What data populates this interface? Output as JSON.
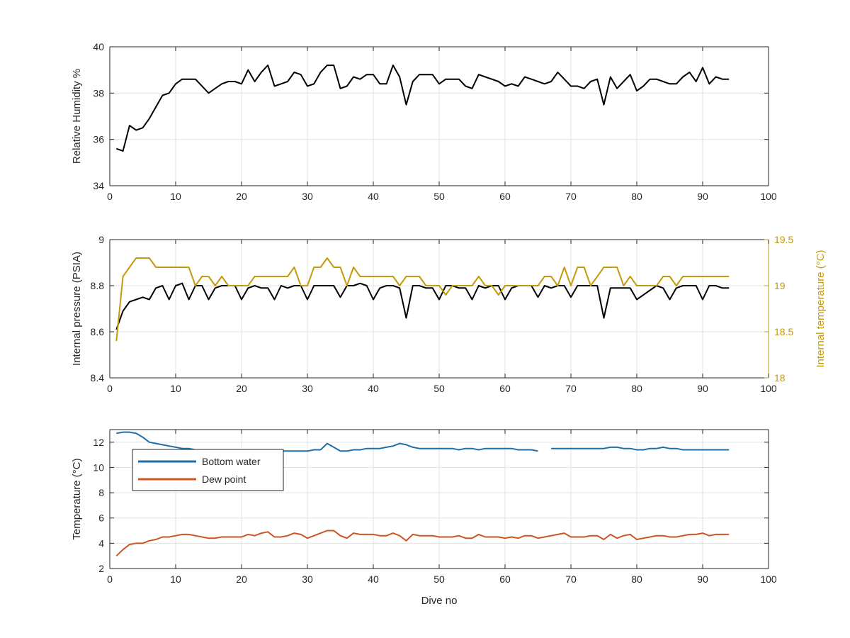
{
  "colors": {
    "black": "#000000",
    "gold": "#c49a0b",
    "blue": "#1f6ea8",
    "orange": "#cc5520",
    "grid": "#e3e3e3",
    "axis": "#262626"
  },
  "chart_data": [
    {
      "type": "line",
      "xlim": [
        0,
        100
      ],
      "xticks": [
        "0",
        "10",
        "20",
        "30",
        "40",
        "50",
        "60",
        "70",
        "80",
        "90",
        "100"
      ],
      "ylim": [
        34,
        40
      ],
      "yticks": [
        "34",
        "36",
        "38",
        "40"
      ],
      "ylabel": "Relative Humidity %",
      "grid": true,
      "series": [
        {
          "axis": "left",
          "color": "black",
          "x": [
            1,
            2,
            3,
            4,
            5,
            6,
            7,
            8,
            9,
            10,
            11,
            12,
            13,
            14,
            15,
            16,
            17,
            18,
            19,
            20,
            21,
            22,
            23,
            24,
            25,
            26,
            27,
            28,
            29,
            30,
            31,
            32,
            33,
            34,
            35,
            36,
            37,
            38,
            39,
            40,
            41,
            42,
            43,
            44,
            45,
            46,
            47,
            48,
            49,
            50,
            51,
            52,
            53,
            54,
            55,
            56,
            57,
            58,
            59,
            60,
            61,
            62,
            63,
            64,
            65,
            66,
            67,
            68,
            69,
            70,
            71,
            72,
            73,
            74,
            75,
            76,
            77,
            78,
            79,
            80,
            81,
            82,
            83,
            84,
            85,
            86,
            87,
            88,
            89,
            90,
            91,
            92,
            93,
            94
          ],
          "y": [
            35.6,
            35.5,
            36.6,
            36.4,
            36.5,
            36.9,
            37.4,
            37.9,
            38.0,
            38.4,
            38.6,
            38.6,
            38.6,
            38.3,
            38.0,
            38.2,
            38.4,
            38.5,
            38.5,
            38.4,
            39.0,
            38.5,
            38.9,
            39.2,
            38.3,
            38.4,
            38.5,
            38.9,
            38.8,
            38.3,
            38.4,
            38.9,
            39.2,
            39.2,
            38.2,
            38.3,
            38.7,
            38.6,
            38.8,
            38.8,
            38.4,
            38.4,
            39.2,
            38.7,
            37.5,
            38.5,
            38.8,
            38.8,
            38.8,
            38.4,
            38.6,
            38.6,
            38.6,
            38.3,
            38.2,
            38.8,
            38.7,
            38.6,
            38.5,
            38.3,
            38.4,
            38.3,
            38.7,
            38.6,
            38.5,
            38.4,
            38.5,
            38.9,
            38.6,
            38.3,
            38.3,
            38.2,
            38.5,
            38.6,
            37.5,
            38.7,
            38.2,
            38.5,
            38.8,
            38.1,
            38.3,
            38.6,
            38.6,
            38.5,
            38.4,
            38.4,
            38.7,
            38.9,
            38.5,
            39.1,
            38.4,
            38.7,
            38.6,
            38.6
          ]
        }
      ]
    },
    {
      "type": "line",
      "xlim": [
        0,
        100
      ],
      "xticks": [
        "0",
        "10",
        "20",
        "30",
        "40",
        "50",
        "60",
        "70",
        "80",
        "90",
        "100"
      ],
      "ylim": [
        8.4,
        9
      ],
      "yticks": [
        "8.4",
        "8.6",
        "8.8",
        "9"
      ],
      "ylabel": "Internal pressure (PSIA)",
      "y2lim": [
        18,
        19.5
      ],
      "y2ticks": [
        "18",
        "18.5",
        "19",
        "19.5"
      ],
      "y2label": "Internal temperature (°C)",
      "grid": true,
      "series": [
        {
          "axis": "left",
          "color": "black",
          "x": [
            1,
            2,
            3,
            4,
            5,
            6,
            7,
            8,
            9,
            10,
            11,
            12,
            13,
            14,
            15,
            16,
            17,
            18,
            19,
            20,
            21,
            22,
            23,
            24,
            25,
            26,
            27,
            28,
            29,
            30,
            31,
            32,
            33,
            34,
            35,
            36,
            37,
            38,
            39,
            40,
            41,
            42,
            43,
            44,
            45,
            46,
            47,
            48,
            49,
            50,
            51,
            52,
            53,
            54,
            55,
            56,
            57,
            58,
            59,
            60,
            61,
            62,
            63,
            64,
            65,
            66,
            67,
            68,
            69,
            70,
            71,
            72,
            73,
            74,
            75,
            76,
            77,
            78,
            79,
            80,
            81,
            82,
            83,
            84,
            85,
            86,
            87,
            88,
            89,
            90,
            91,
            92,
            93,
            94
          ],
          "y": [
            8.61,
            8.69,
            8.73,
            8.74,
            8.75,
            8.74,
            8.79,
            8.8,
            8.74,
            8.8,
            8.81,
            8.74,
            8.8,
            8.8,
            8.74,
            8.79,
            8.8,
            8.8,
            8.8,
            8.74,
            8.79,
            8.8,
            8.79,
            8.79,
            8.74,
            8.8,
            8.79,
            8.8,
            8.8,
            8.74,
            8.8,
            8.8,
            8.8,
            8.8,
            8.75,
            8.8,
            8.8,
            8.81,
            8.8,
            8.74,
            8.79,
            8.8,
            8.8,
            8.79,
            8.66,
            8.8,
            8.8,
            8.79,
            8.79,
            8.74,
            8.8,
            8.8,
            8.79,
            8.79,
            8.74,
            8.8,
            8.79,
            8.8,
            8.8,
            8.74,
            8.79,
            8.8,
            8.8,
            8.8,
            8.75,
            8.8,
            8.79,
            8.8,
            8.8,
            8.75,
            8.8,
            8.8,
            8.8,
            8.8,
            8.66,
            8.79,
            8.79,
            8.79,
            8.79,
            8.74,
            8.76,
            8.78,
            8.8,
            8.79,
            8.74,
            8.79,
            8.8,
            8.8,
            8.8,
            8.74,
            8.8,
            8.8,
            8.79,
            8.79
          ]
        },
        {
          "axis": "right",
          "color": "gold",
          "x": [
            1,
            2,
            3,
            4,
            5,
            6,
            7,
            8,
            9,
            10,
            11,
            12,
            13,
            14,
            15,
            16,
            17,
            18,
            19,
            20,
            21,
            22,
            23,
            24,
            25,
            26,
            27,
            28,
            29,
            30,
            31,
            32,
            33,
            34,
            35,
            36,
            37,
            38,
            39,
            40,
            41,
            42,
            43,
            44,
            45,
            46,
            47,
            48,
            49,
            50,
            51,
            52,
            53,
            54,
            55,
            56,
            57,
            58,
            59,
            60,
            61,
            62,
            63,
            64,
            65,
            66,
            67,
            68,
            69,
            70,
            71,
            72,
            73,
            74,
            75,
            76,
            77,
            78,
            79,
            80,
            81,
            82,
            83,
            84,
            85,
            86,
            87,
            88,
            89,
            90,
            91,
            92,
            93,
            94
          ],
          "y": [
            18.4,
            19.1,
            19.2,
            19.3,
            19.3,
            19.3,
            19.2,
            19.2,
            19.2,
            19.2,
            19.2,
            19.2,
            19.0,
            19.1,
            19.1,
            19.0,
            19.1,
            19.0,
            19.0,
            19.0,
            19.0,
            19.1,
            19.1,
            19.1,
            19.1,
            19.1,
            19.1,
            19.2,
            19.0,
            19.0,
            19.2,
            19.2,
            19.3,
            19.2,
            19.2,
            19.0,
            19.2,
            19.1,
            19.1,
            19.1,
            19.1,
            19.1,
            19.1,
            19.0,
            19.1,
            19.1,
            19.1,
            19.0,
            19.0,
            19.0,
            18.9,
            19.0,
            19.0,
            19.0,
            19.0,
            19.1,
            19.0,
            19.0,
            18.9,
            19.0,
            19.0,
            19.0,
            19.0,
            19.0,
            19.0,
            19.1,
            19.1,
            19.0,
            19.2,
            19.0,
            19.2,
            19.2,
            19.0,
            19.1,
            19.2,
            19.2,
            19.2,
            19.0,
            19.1,
            19.0,
            19.0,
            19.0,
            19.0,
            19.1,
            19.1,
            19.0,
            19.1,
            19.1,
            19.1,
            19.1,
            19.1,
            19.1,
            19.1,
            19.1
          ]
        }
      ]
    },
    {
      "type": "line",
      "xlim": [
        0,
        100
      ],
      "xticks": [
        "0",
        "10",
        "20",
        "30",
        "40",
        "50",
        "60",
        "70",
        "80",
        "90",
        "100"
      ],
      "ylim": [
        2,
        13
      ],
      "yticks": [
        "2",
        "4",
        "6",
        "8",
        "10",
        "12"
      ],
      "xlabel": "Dive no",
      "ylabel": "Temperature (°C)",
      "grid": true,
      "legend": "top-left",
      "series": [
        {
          "name": "Bottom water",
          "axis": "left",
          "color": "blue",
          "x": [
            1,
            2,
            3,
            4,
            5,
            6,
            7,
            8,
            9,
            10,
            11,
            12,
            13,
            14,
            15,
            16,
            17,
            18,
            19,
            20,
            21,
            22,
            23,
            24,
            25,
            26,
            27,
            28,
            29,
            30,
            31,
            32,
            33,
            34,
            35,
            36,
            37,
            38,
            39,
            40,
            41,
            42,
            43,
            44,
            45,
            46,
            47,
            48,
            49,
            50,
            51,
            52,
            53,
            54,
            55,
            56,
            57,
            58,
            59,
            60,
            61,
            62,
            63,
            64,
            65,
            null,
            67,
            68,
            69,
            70,
            71,
            72,
            73,
            74,
            75,
            76,
            77,
            78,
            79,
            80,
            81,
            82,
            83,
            84,
            85,
            86,
            87,
            88,
            89,
            90,
            91,
            92,
            93,
            94
          ],
          "y": [
            12.7,
            12.8,
            12.8,
            12.7,
            12.4,
            12.0,
            11.9,
            11.8,
            11.7,
            11.6,
            11.5,
            11.5,
            11.4,
            11.4,
            11.4,
            11.4,
            11.4,
            11.4,
            11.4,
            11.4,
            11.4,
            11.4,
            11.4,
            11.4,
            11.3,
            11.3,
            11.3,
            11.3,
            11.3,
            11.3,
            11.4,
            11.4,
            11.9,
            11.6,
            11.3,
            11.3,
            11.4,
            11.4,
            11.5,
            11.5,
            11.5,
            11.6,
            11.7,
            11.9,
            11.8,
            11.6,
            11.5,
            11.5,
            11.5,
            11.5,
            11.5,
            11.5,
            11.4,
            11.5,
            11.5,
            11.4,
            11.5,
            11.5,
            11.5,
            11.5,
            11.5,
            11.4,
            11.4,
            11.4,
            11.3,
            null,
            11.5,
            11.5,
            11.5,
            11.5,
            11.5,
            11.5,
            11.5,
            11.5,
            11.5,
            11.6,
            11.6,
            11.5,
            11.5,
            11.4,
            11.4,
            11.5,
            11.5,
            11.6,
            11.5,
            11.5,
            11.4,
            11.4,
            11.4,
            11.4,
            11.4,
            11.4,
            11.4,
            11.4
          ]
        },
        {
          "name": "Dew point",
          "axis": "left",
          "color": "orange",
          "x": [
            1,
            2,
            3,
            4,
            5,
            6,
            7,
            8,
            9,
            10,
            11,
            12,
            13,
            14,
            15,
            16,
            17,
            18,
            19,
            20,
            21,
            22,
            23,
            24,
            25,
            26,
            27,
            28,
            29,
            30,
            31,
            32,
            33,
            34,
            35,
            36,
            37,
            38,
            39,
            40,
            41,
            42,
            43,
            44,
            45,
            46,
            47,
            48,
            49,
            50,
            51,
            52,
            53,
            54,
            55,
            56,
            57,
            58,
            59,
            60,
            61,
            62,
            63,
            64,
            65,
            66,
            67,
            68,
            69,
            70,
            71,
            72,
            73,
            74,
            75,
            76,
            77,
            78,
            79,
            80,
            81,
            82,
            83,
            84,
            85,
            86,
            87,
            88,
            89,
            90,
            91,
            92,
            93,
            94
          ],
          "y": [
            3.0,
            3.5,
            3.9,
            4.0,
            4.0,
            4.2,
            4.3,
            4.5,
            4.5,
            4.6,
            4.7,
            4.7,
            4.6,
            4.5,
            4.4,
            4.4,
            4.5,
            4.5,
            4.5,
            4.5,
            4.7,
            4.6,
            4.8,
            4.9,
            4.5,
            4.5,
            4.6,
            4.8,
            4.7,
            4.4,
            4.6,
            4.8,
            5.0,
            5.0,
            4.6,
            4.4,
            4.8,
            4.7,
            4.7,
            4.7,
            4.6,
            4.6,
            4.8,
            4.6,
            4.2,
            4.7,
            4.6,
            4.6,
            4.6,
            4.5,
            4.5,
            4.5,
            4.6,
            4.4,
            4.4,
            4.7,
            4.5,
            4.5,
            4.5,
            4.4,
            4.5,
            4.4,
            4.6,
            4.6,
            4.4,
            4.5,
            4.6,
            4.7,
            4.8,
            4.5,
            4.5,
            4.5,
            4.6,
            4.6,
            4.3,
            4.7,
            4.4,
            4.6,
            4.7,
            4.3,
            4.4,
            4.5,
            4.6,
            4.6,
            4.5,
            4.5,
            4.6,
            4.7,
            4.7,
            4.8,
            4.6,
            4.7,
            4.7,
            4.7
          ]
        }
      ]
    }
  ]
}
